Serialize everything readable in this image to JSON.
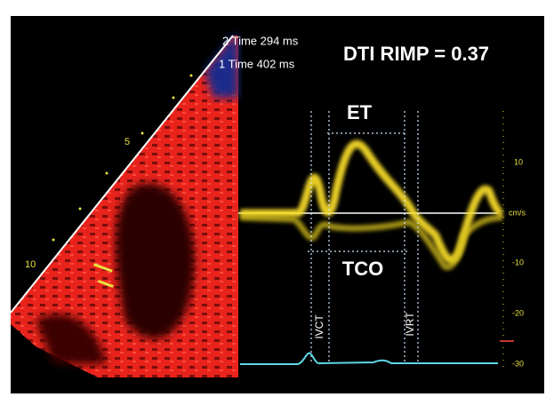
{
  "header": {
    "time_2": "2 Time 294 ms",
    "time_1": "1 Time 402 ms",
    "title": "DTI RIMP = 0.37"
  },
  "labels": {
    "et": "ET",
    "tco": "TCO",
    "ivct": "IVCT",
    "ivrt": "IVRT"
  },
  "depth_labels": [
    "5",
    "10"
  ],
  "scale": {
    "unit": "cm/s",
    "ticks": [
      "10",
      "-10",
      "-20",
      "-30"
    ]
  }
}
